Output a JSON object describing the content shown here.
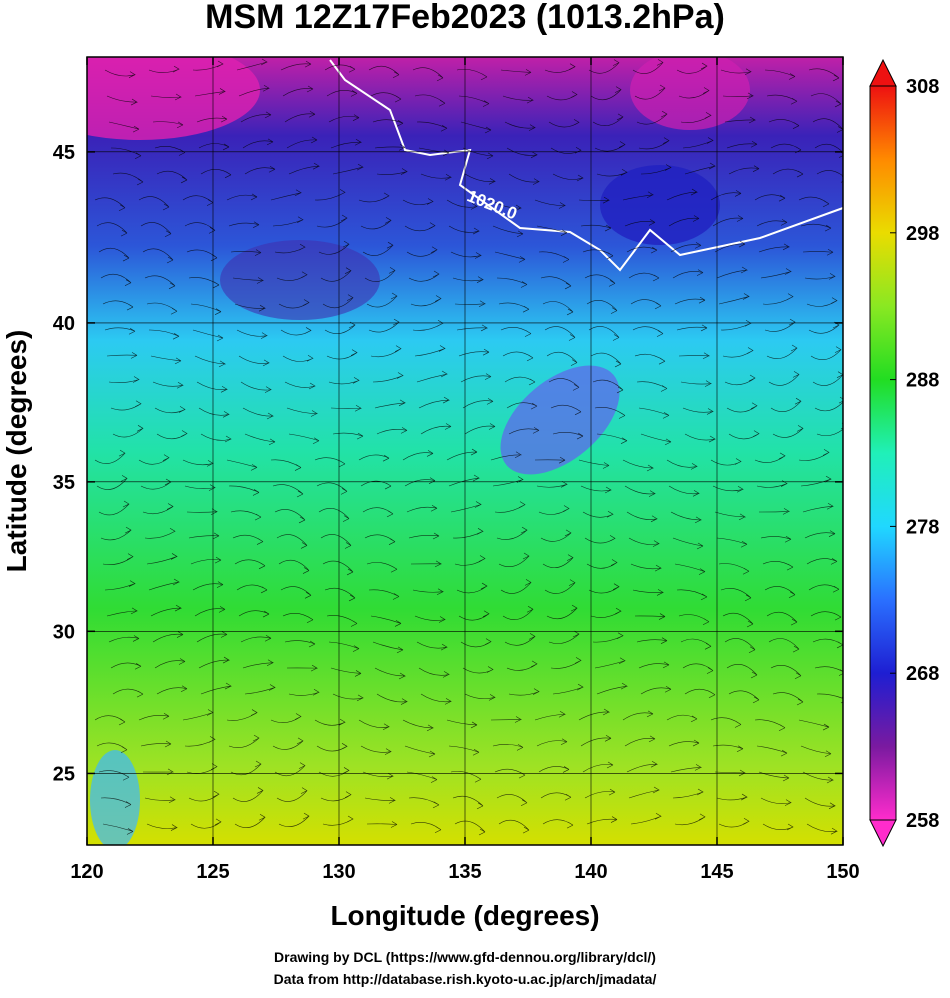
{
  "chart_data": {
    "type": "map",
    "title": "MSM 12Z17Feb2023 (1013.2hPa)",
    "xlabel": "Longitude (degrees)",
    "ylabel": "Latitude  (degrees)",
    "xlim": [
      120,
      150
    ],
    "xticks": [
      120,
      125,
      130,
      135,
      140,
      145,
      150
    ],
    "ylim": [
      22.4,
      47.6
    ],
    "yticks": [
      25,
      30,
      35,
      40,
      45
    ],
    "projection": "mercator",
    "grid": true,
    "colorbar": {
      "lim": [
        258,
        308
      ],
      "ticks": [
        258,
        268,
        278,
        288,
        298,
        308
      ],
      "colors": [
        "#ff2ccc",
        "#7a1aa0",
        "#1e1ed2",
        "#2a70ff",
        "#20d8ff",
        "#20f0b8",
        "#22dd22",
        "#8ae822",
        "#eadc00",
        "#ff8a00",
        "#ee1111"
      ]
    },
    "contour_label": "1020.0",
    "footer": [
      "Drawing by DCL (https://www.gfd-dennou.org/library/dcl/)",
      "Data from http://database.rish.kyoto-u.ac.jp/arch/jmadata/"
    ]
  }
}
